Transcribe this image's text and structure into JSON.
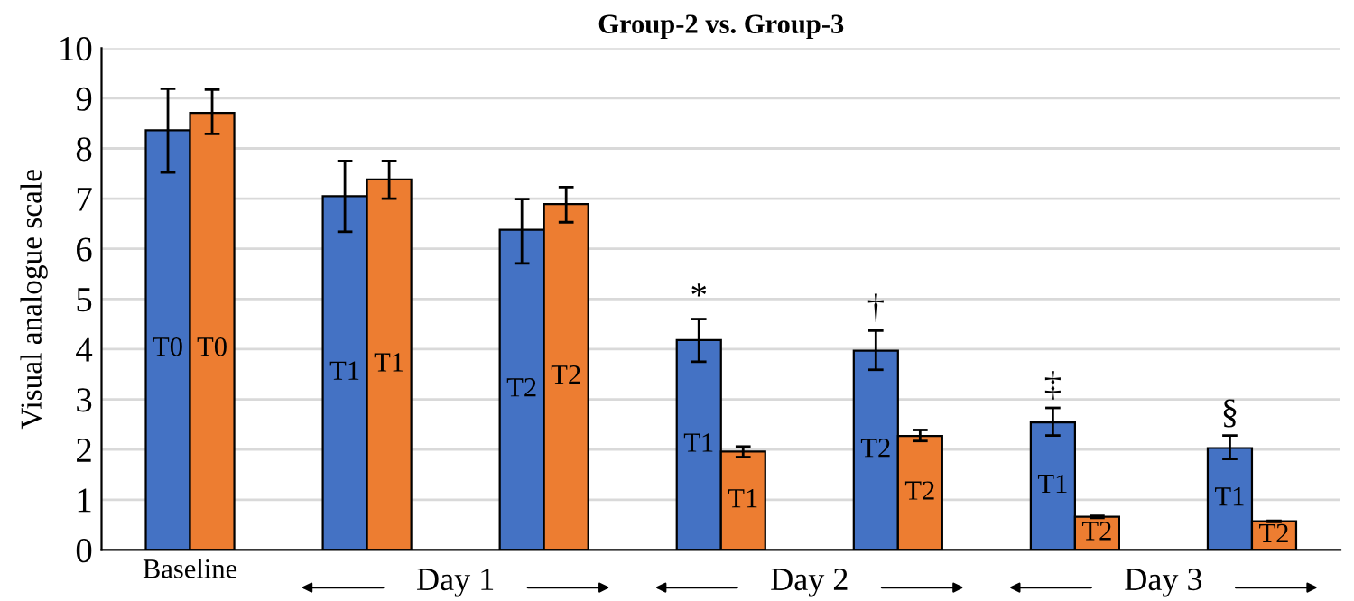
{
  "chart_data": {
    "type": "bar",
    "title": "Group-2 vs. Group-3",
    "ylabel": "Visual analogue scale",
    "categories": [
      "Baseline",
      null,
      null,
      null,
      null,
      null,
      null
    ],
    "series": [
      {
        "color": "#4472c4",
        "values": [
          8.36,
          7.05,
          6.38,
          4.18,
          3.97,
          2.54,
          2.03
        ],
        "errors": [
          [
            7.52,
            9.19
          ],
          [
            6.34,
            7.75
          ],
          [
            5.71,
            6.99
          ],
          [
            3.75,
            4.6
          ],
          [
            3.59,
            4.37
          ],
          [
            2.28,
            2.83
          ],
          [
            1.81,
            2.28
          ]
        ],
        "value_labels": [
          "T0",
          "T1",
          "T2",
          "T1",
          "T2",
          "T1",
          "T1"
        ]
      },
      {
        "color": "#ed7d31",
        "values": [
          8.71,
          7.38,
          6.89,
          1.96,
          2.27,
          0.66,
          0.57
        ],
        "errors": [
          [
            8.29,
            9.17
          ],
          [
            7.0,
            7.75
          ],
          [
            6.53,
            7.23
          ],
          [
            1.85,
            2.06
          ],
          [
            2.17,
            2.39
          ],
          [
            0.64,
            0.68
          ],
          [
            0.56,
            0.58
          ]
        ],
        "value_labels": [
          "T0",
          "T1",
          "T2",
          "T1",
          "T2",
          "T2",
          "T2"
        ]
      }
    ],
    "ylim": [
      0,
      10
    ],
    "yticks": [
      0,
      1,
      2,
      3,
      4,
      5,
      6,
      7,
      8,
      9,
      10
    ],
    "grid": "y",
    "annotations": [
      "Day 1",
      "Day 2",
      "Day 3",
      {
        "text": "*",
        "y": 4.6
      },
      {
        "text": "†",
        "y": 4.37
      },
      {
        "text": "‡",
        "y": 2.83
      },
      {
        "text": "§",
        "y": 2.28
      }
    ]
  }
}
